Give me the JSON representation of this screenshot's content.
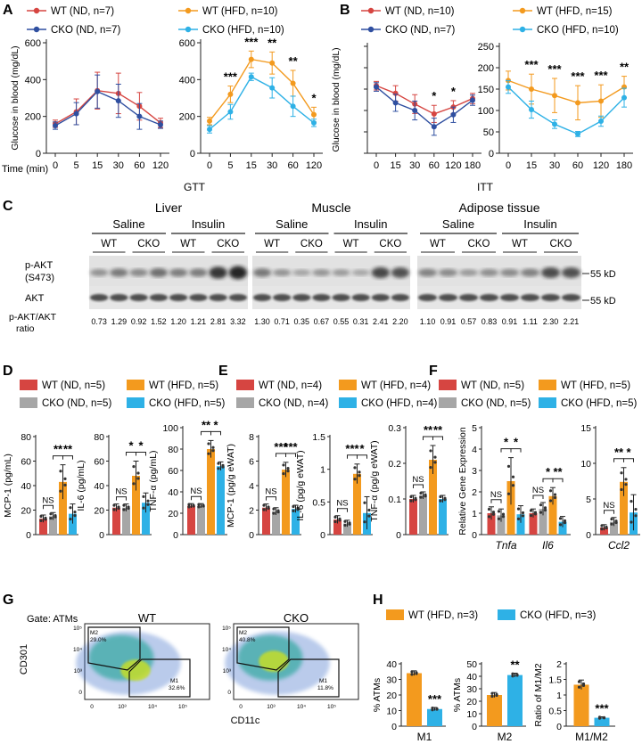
{
  "colors": {
    "wt_nd": "#d64541",
    "cko_nd": "#2f4fa0",
    "wt_hfd": "#f39a1e",
    "cko_hfd": "#2eb1e6",
    "grey": "#a6a6a6",
    "blot": "#2a2a2a"
  },
  "panels": {
    "A": {
      "letter": "A",
      "legend": [
        {
          "label": "WT (ND, n=7)",
          "color": "#d64541"
        },
        {
          "label": "WT (HFD, n=10)",
          "color": "#f39a1e"
        },
        {
          "label": "CKO (ND, n=7)",
          "color": "#2f4fa0"
        },
        {
          "label": "CKO (HFD, n=10)",
          "color": "#2eb1e6"
        }
      ],
      "time_label": "Time (min)",
      "xlabel": "GTT"
    },
    "B": {
      "letter": "B",
      "legend": [
        {
          "label": "WT (ND, n=10)",
          "color": "#d64541"
        },
        {
          "label": "WT (HFD, n=15)",
          "color": "#f39a1e"
        },
        {
          "label": "CKO (ND, n=7)",
          "color": "#2f4fa0"
        },
        {
          "label": "CKO (HFD, n=10)",
          "color": "#2eb1e6"
        }
      ],
      "xlabel": "ITT"
    },
    "C": {
      "letter": "C",
      "tissues": [
        "Liver",
        "Muscle",
        "Adipose tissue"
      ],
      "treatments": [
        "Saline",
        "Insulin"
      ],
      "genotypes": [
        "WT",
        "CKO"
      ],
      "rows": [
        "p-AKT (S473)",
        "AKT"
      ],
      "row_label_1": "p-AKT",
      "row_label_2": "(S473)",
      "akt_label": "AKT",
      "marker": "55 kD",
      "ratio_label_1": "p-AKT/AKT",
      "ratio_label_2": "ratio",
      "ratios": [
        [
          "0.73",
          "1.29",
          "0.92",
          "1.52",
          "1.20",
          "1.21",
          "2.81",
          "3.32"
        ],
        [
          "1.30",
          "0.71",
          "0.35",
          "0.67",
          "0.55",
          "0.31",
          "2.41",
          "2.20"
        ],
        [
          "1.10",
          "0.91",
          "0.57",
          "0.83",
          "0.91",
          "1.11",
          "2.30",
          "2.21"
        ]
      ]
    },
    "D": {
      "letter": "D",
      "legend": [
        {
          "label": "WT (ND, n=5)",
          "color": "#d64541"
        },
        {
          "label": "WT (HFD, n=5)",
          "color": "#f39a1e"
        },
        {
          "label": "CKO (ND, n=5)",
          "color": "#a6a6a6"
        },
        {
          "label": "CKO (HFD, n=5)",
          "color": "#2eb1e6"
        }
      ]
    },
    "E": {
      "letter": "E",
      "legend": [
        {
          "label": "WT (ND, n=4)",
          "color": "#d64541"
        },
        {
          "label": "WT (HFD, n=4)",
          "color": "#f39a1e"
        },
        {
          "label": "CKO (ND, n=4)",
          "color": "#a6a6a6"
        },
        {
          "label": "CKO (HFD, n=4)",
          "color": "#2eb1e6"
        }
      ]
    },
    "F": {
      "letter": "F",
      "legend": [
        {
          "label": "WT (ND, n=5)",
          "color": "#d64541"
        },
        {
          "label": "WT (HFD, n=5)",
          "color": "#f39a1e"
        },
        {
          "label": "CKO (ND, n=5)",
          "color": "#a6a6a6"
        },
        {
          "label": "CKO (HFD, n=5)",
          "color": "#2eb1e6"
        }
      ]
    },
    "G": {
      "letter": "G",
      "gate": "Gate: ATMs",
      "plots": [
        {
          "title": "WT",
          "m2": "M2",
          "m2_pct": "29.0%",
          "m1": "M1",
          "m1_pct": "32.6%"
        },
        {
          "title": "CKO",
          "m2": "M2",
          "m2_pct": "40.8%",
          "m1": "M1",
          "m1_pct": "11.8%"
        }
      ],
      "xlabel": "CD11c",
      "ylabel": "CD301",
      "xticks": [
        "0",
        "10³",
        "10⁴",
        "10⁵"
      ],
      "yticks": [
        "0",
        "10³",
        "10⁴",
        "10⁵"
      ]
    },
    "H": {
      "letter": "H",
      "legend": [
        {
          "label": "WT (HFD, n=3)",
          "color": "#f39a1e"
        },
        {
          "label": "CKO (HFD, n=3)",
          "color": "#2eb1e6"
        }
      ]
    }
  },
  "chart_data": [
    {
      "id": "A_ND",
      "type": "line",
      "title": "",
      "xlabel": "Time (min)",
      "ylabel": "Glucose in blood (mg/dL)",
      "categories": [
        "0",
        "5",
        "15",
        "30",
        "60",
        "120"
      ],
      "ylim": [
        0,
        600
      ],
      "yticks": [
        0,
        200,
        400,
        600
      ],
      "series": [
        {
          "name": "WT (ND, n=7)",
          "color": "#d64541",
          "values": [
            160,
            225,
            340,
            325,
            255,
            165
          ],
          "err": [
            20,
            70,
            100,
            110,
            75,
            25
          ]
        },
        {
          "name": "CKO (ND, n=7)",
          "color": "#2f4fa0",
          "values": [
            150,
            215,
            335,
            285,
            200,
            155
          ],
          "err": [
            20,
            60,
            90,
            90,
            70,
            20
          ]
        }
      ],
      "stars": []
    },
    {
      "id": "A_HFD",
      "type": "line",
      "title": "",
      "xlabel": "GTT",
      "ylabel": "",
      "categories": [
        "0",
        "5",
        "15",
        "30",
        "60",
        "120"
      ],
      "ylim": [
        0,
        600
      ],
      "yticks": [
        0,
        200,
        400,
        600
      ],
      "series": [
        {
          "name": "WT (HFD, n=10)",
          "color": "#f39a1e",
          "values": [
            175,
            320,
            510,
            490,
            380,
            210
          ],
          "err": [
            20,
            45,
            45,
            60,
            70,
            40
          ]
        },
        {
          "name": "CKO (HFD, n=10)",
          "color": "#2eb1e6",
          "values": [
            130,
            225,
            415,
            355,
            255,
            165
          ],
          "err": [
            20,
            40,
            20,
            55,
            55,
            20
          ]
        }
      ],
      "stars": [
        {
          "i": 1,
          "text": "***"
        },
        {
          "i": 2,
          "text": "***"
        },
        {
          "i": 3,
          "text": "**"
        },
        {
          "i": 4,
          "text": "**"
        },
        {
          "i": 5,
          "text": "*"
        }
      ]
    },
    {
      "id": "B_ND",
      "type": "line",
      "title": "",
      "xlabel": "",
      "ylabel": "Glucose in blood (mg/dL)",
      "categories": [
        "0",
        "15",
        "30",
        "60",
        "120",
        "180"
      ],
      "ylim": [
        0,
        250
      ],
      "yticks": [
        0,
        50,
        100,
        150,
        200,
        250
      ],
      "series": [
        {
          "name": "WT (ND, n=10)",
          "color": "#d64541",
          "values": [
            158,
            140,
            115,
            92,
            108,
            128
          ],
          "err": [
            10,
            18,
            22,
            20,
            15,
            12
          ]
        },
        {
          "name": "CKO (ND, n=7)",
          "color": "#2f4fa0",
          "values": [
            155,
            118,
            100,
            62,
            90,
            124
          ],
          "err": [
            10,
            20,
            22,
            20,
            18,
            12
          ]
        }
      ],
      "stars": [
        {
          "i": 3,
          "text": "*"
        },
        {
          "i": 4,
          "text": "*"
        }
      ]
    },
    {
      "id": "B_HFD",
      "type": "line",
      "title": "",
      "xlabel": "ITT",
      "ylabel": "",
      "categories": [
        "0",
        "15",
        "30",
        "60",
        "120",
        "180"
      ],
      "ylim": [
        0,
        250
      ],
      "yticks": [
        0,
        50,
        100,
        150,
        200,
        250
      ],
      "series": [
        {
          "name": "WT (HFD, n=15)",
          "color": "#f39a1e",
          "values": [
            170,
            150,
            135,
            118,
            122,
            155
          ],
          "err": [
            22,
            35,
            40,
            40,
            38,
            25
          ]
        },
        {
          "name": "CKO (HFD, n=10)",
          "color": "#2eb1e6",
          "values": [
            155,
            102,
            68,
            45,
            75,
            130
          ],
          "err": [
            15,
            20,
            10,
            6,
            12,
            22
          ]
        }
      ],
      "stars": [
        {
          "i": 1,
          "text": "***"
        },
        {
          "i": 2,
          "text": "***"
        },
        {
          "i": 3,
          "text": "***"
        },
        {
          "i": 4,
          "text": "***"
        },
        {
          "i": 5,
          "text": "**"
        }
      ]
    },
    {
      "id": "D_MCP1",
      "type": "bar",
      "ylabel": "MCP-1 (pg/mL)",
      "ylim": [
        0,
        80
      ],
      "yticks": [
        0,
        20,
        40,
        60,
        80
      ],
      "groups": [
        {
          "label": "",
          "values": [
            13,
            15,
            43,
            17
          ],
          "err": [
            3,
            3,
            14,
            8
          ]
        }
      ],
      "bars_colors": [
        "#d64541",
        "#a6a6a6",
        "#f39a1e",
        "#2eb1e6"
      ],
      "sig": [
        {
          "a": 0,
          "b": 1,
          "text": "NS",
          "level": 1
        },
        {
          "a": 1,
          "b": 2,
          "text": "**",
          "level": 3
        },
        {
          "a": 2,
          "b": 3,
          "text": "**",
          "level": 3
        }
      ]
    },
    {
      "id": "D_IL6",
      "type": "bar",
      "ylabel": "IL-6 (pg/mL)",
      "ylim": [
        0,
        80
      ],
      "yticks": [
        0,
        20,
        40,
        60,
        80
      ],
      "groups": [
        {
          "label": "",
          "values": [
            22,
            22,
            48,
            26
          ],
          "err": [
            3,
            3,
            12,
            8
          ]
        }
      ],
      "bars_colors": [
        "#d64541",
        "#a6a6a6",
        "#f39a1e",
        "#2eb1e6"
      ],
      "sig": [
        {
          "a": 0,
          "b": 1,
          "text": "NS",
          "level": 1
        },
        {
          "a": 1,
          "b": 2,
          "text": "*",
          "level": 3
        },
        {
          "a": 2,
          "b": 3,
          "text": "*",
          "level": 3
        }
      ]
    },
    {
      "id": "D_TNF",
      "type": "bar",
      "ylabel": "TNF-α (pg/mL)",
      "ylim": [
        0,
        100
      ],
      "yticks": [
        0,
        20,
        40,
        60,
        80,
        100
      ],
      "groups": [
        {
          "label": "",
          "values": [
            27,
            27,
            80,
            64
          ],
          "err": [
            2,
            2,
            8,
            4
          ]
        }
      ],
      "bars_colors": [
        "#d64541",
        "#a6a6a6",
        "#f39a1e",
        "#2eb1e6"
      ],
      "sig": [
        {
          "a": 0,
          "b": 1,
          "text": "NS",
          "level": 1
        },
        {
          "a": 1,
          "b": 2,
          "text": "**",
          "level": 3
        },
        {
          "a": 2,
          "b": 3,
          "text": "*",
          "level": 3
        }
      ]
    },
    {
      "id": "E_MCP1",
      "type": "bar",
      "ylabel": "MCP-1 (pg/g eWAT)",
      "ylim": [
        0,
        8
      ],
      "yticks": [
        0,
        2,
        4,
        6,
        8
      ],
      "groups": [
        {
          "label": "",
          "values": [
            2.2,
            1.9,
            5.3,
            2.1
          ],
          "err": [
            0.3,
            0.3,
            0.6,
            0.3
          ]
        }
      ],
      "bars_colors": [
        "#d64541",
        "#a6a6a6",
        "#f39a1e",
        "#2eb1e6"
      ],
      "sig": [
        {
          "a": 0,
          "b": 1,
          "text": "NS",
          "level": 1
        },
        {
          "a": 1,
          "b": 2,
          "text": "***",
          "level": 3
        },
        {
          "a": 2,
          "b": 3,
          "text": "***",
          "level": 3
        }
      ]
    },
    {
      "id": "E_IL6",
      "type": "bar",
      "ylabel": "IL-6 (pg/g eWAT)",
      "ylim": [
        0,
        1.5
      ],
      "yticks": [
        0,
        0.5,
        1.0,
        1.5
      ],
      "groups": [
        {
          "label": "",
          "values": [
            0.23,
            0.17,
            0.93,
            0.33
          ],
          "err": [
            0.06,
            0.05,
            0.15,
            0.25
          ]
        }
      ],
      "bars_colors": [
        "#d64541",
        "#a6a6a6",
        "#f39a1e",
        "#2eb1e6"
      ],
      "sig": [
        {
          "a": 0,
          "b": 1,
          "text": "NS",
          "level": 1
        },
        {
          "a": 1,
          "b": 2,
          "text": "***",
          "level": 3
        },
        {
          "a": 2,
          "b": 3,
          "text": "*",
          "level": 3
        }
      ]
    },
    {
      "id": "E_TNF",
      "type": "bar",
      "ylabel": "TNF-α (pg/g eWAT)",
      "ylim": [
        0,
        0.3
      ],
      "yticks": [
        0,
        0.1,
        0.2,
        0.3
      ],
      "groups": [
        {
          "label": "",
          "values": [
            0.1,
            0.11,
            0.21,
            0.1
          ],
          "err": [
            0.01,
            0.01,
            0.04,
            0.01
          ]
        }
      ],
      "bars_colors": [
        "#d64541",
        "#a6a6a6",
        "#f39a1e",
        "#2eb1e6"
      ],
      "sig": [
        {
          "a": 0,
          "b": 1,
          "text": "NS",
          "level": 1
        },
        {
          "a": 1,
          "b": 2,
          "text": "**",
          "level": 3
        },
        {
          "a": 2,
          "b": 3,
          "text": "**",
          "level": 3
        }
      ]
    },
    {
      "id": "F_genes",
      "type": "bar",
      "ylabel": "Relative Gene Expression",
      "ylim": [
        0,
        5
      ],
      "yticks": [
        0,
        1,
        2,
        3,
        4,
        5
      ],
      "groups": [
        {
          "label": "Tnfa",
          "values": [
            1.0,
            0.9,
            2.5,
            0.95
          ],
          "err": [
            0.3,
            0.3,
            1.1,
            0.4
          ]
        },
        {
          "label": "Il6",
          "values": [
            1.0,
            1.2,
            1.8,
            0.6
          ],
          "err": [
            0.2,
            0.3,
            0.4,
            0.25
          ]
        }
      ],
      "bars_colors": [
        "#d64541",
        "#a6a6a6",
        "#f39a1e",
        "#2eb1e6"
      ],
      "sig": [
        {
          "g": 0,
          "a": 0,
          "b": 1,
          "text": "NS",
          "level": 1
        },
        {
          "g": 0,
          "a": 1,
          "b": 2,
          "text": "*",
          "level": 3
        },
        {
          "g": 0,
          "a": 2,
          "b": 3,
          "text": "*",
          "level": 3
        },
        {
          "g": 1,
          "a": 0,
          "b": 1,
          "text": "NS",
          "level": 1
        },
        {
          "g": 1,
          "a": 1,
          "b": 2,
          "text": "*",
          "level": 3
        },
        {
          "g": 1,
          "a": 2,
          "b": 3,
          "text": "**",
          "level": 3
        }
      ]
    },
    {
      "id": "F_ccl2",
      "type": "bar",
      "ylabel": "",
      "ylim": [
        0,
        15
      ],
      "yticks": [
        0,
        5,
        10,
        15
      ],
      "groups": [
        {
          "label": "Ccl2",
          "values": [
            1.0,
            1.8,
            7.4,
            3.1
          ],
          "err": [
            0.4,
            0.6,
            2.0,
            2.5
          ]
        }
      ],
      "bars_colors": [
        "#d64541",
        "#a6a6a6",
        "#f39a1e",
        "#2eb1e6"
      ],
      "sig": [
        {
          "a": 0,
          "b": 1,
          "text": "NS",
          "level": 1
        },
        {
          "a": 1,
          "b": 2,
          "text": "**",
          "level": 3
        },
        {
          "a": 2,
          "b": 3,
          "text": "*",
          "level": 3
        }
      ]
    },
    {
      "id": "H_pct1",
      "type": "bar",
      "ylabel": "% ATMs",
      "ylim": [
        0,
        40
      ],
      "yticks": [
        0,
        10,
        20,
        30,
        40
      ],
      "groups": [
        {
          "label": "M1",
          "values": [
            34,
            11
          ],
          "err": [
            1.5,
            1.0
          ]
        }
      ],
      "bars_colors": [
        "#f39a1e",
        "#2eb1e6"
      ],
      "sig": [
        {
          "a": 1,
          "b": 1,
          "text": "***",
          "level": 0
        }
      ]
    },
    {
      "id": "H_pct2",
      "type": "bar",
      "ylabel": "% ATMs",
      "ylim": [
        0,
        50
      ],
      "yticks": [
        0,
        10,
        20,
        30,
        40,
        50
      ],
      "groups": [
        {
          "label": "M2",
          "values": [
            25,
            41
          ],
          "err": [
            2,
            1.5
          ]
        }
      ],
      "bars_colors": [
        "#f39a1e",
        "#2eb1e6"
      ],
      "sig": [
        {
          "a": 1,
          "b": 1,
          "text": "**",
          "level": 0
        }
      ]
    },
    {
      "id": "H_ratio",
      "type": "bar",
      "ylabel": "Ratio of M1/M2",
      "ylim": [
        0,
        2.0
      ],
      "yticks": [
        0,
        0.5,
        1.0,
        1.5,
        2.0
      ],
      "groups": [
        {
          "label": "M1/M2",
          "values": [
            1.33,
            0.27
          ],
          "err": [
            0.15,
            0.03
          ]
        }
      ],
      "bars_colors": [
        "#f39a1e",
        "#2eb1e6"
      ],
      "sig": [
        {
          "a": 1,
          "b": 1,
          "text": "***",
          "level": 0
        }
      ]
    }
  ]
}
